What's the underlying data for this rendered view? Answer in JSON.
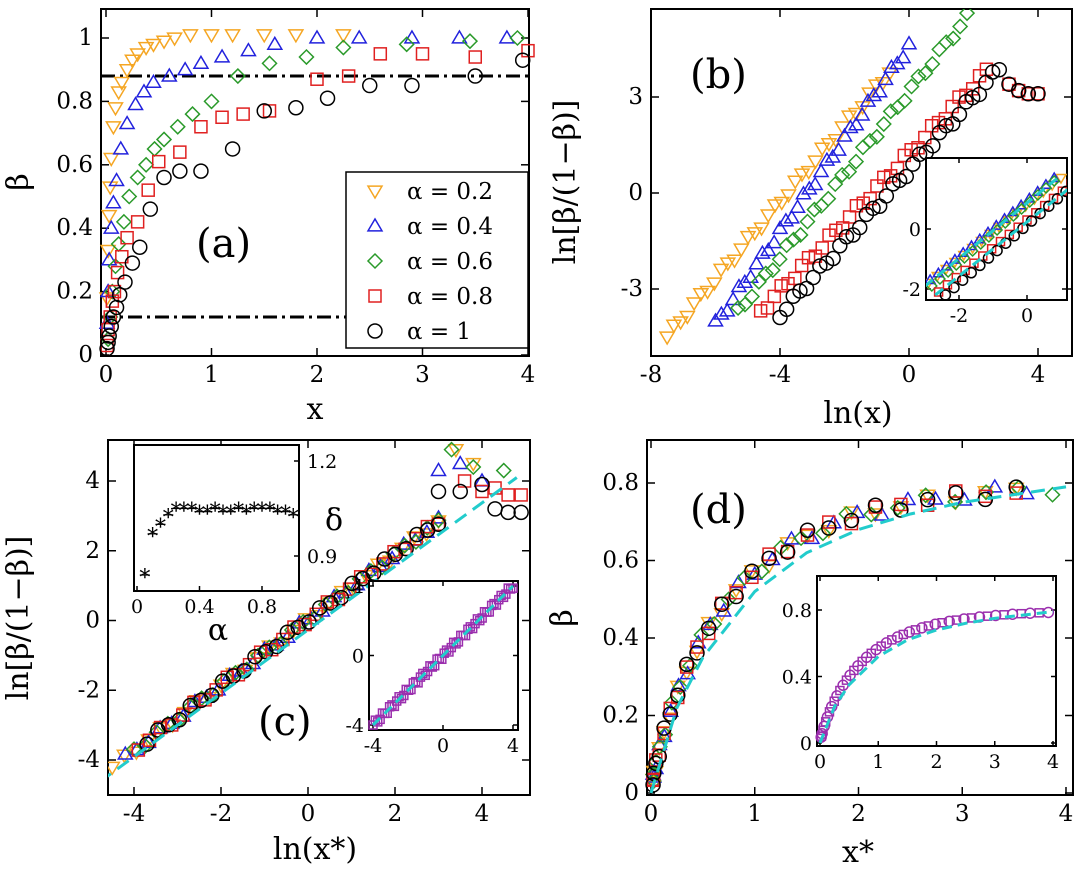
{
  "chart_data": [
    {
      "panel": "a",
      "type": "scatter",
      "panel_label": "(a)",
      "xlabel": "x",
      "ylabel": "β",
      "xlim": [
        0,
        4
      ],
      "ylim": [
        0,
        1.1
      ],
      "xticks": [
        "0",
        "1",
        "2",
        "3",
        "4"
      ],
      "yticks": [
        "0",
        "0.2",
        "0.4",
        "0.6",
        "0.8",
        "1"
      ],
      "reference_lines": [
        {
          "style": "dash-dot",
          "y": 0.88
        },
        {
          "style": "dash-dot",
          "y": 0.12,
          "x_end": 2.35
        }
      ],
      "legend": {
        "position": "bottom-right",
        "entries": [
          "α = 0.2",
          "α = 0.4",
          "α = 0.6",
          "α = 0.8",
          "α = 1"
        ]
      },
      "series": [
        {
          "name": "α = 0.2",
          "color": "#f5a623",
          "marker": "triangle-down",
          "x": [
            0.01,
            0.02,
            0.03,
            0.04,
            0.05,
            0.07,
            0.09,
            0.12,
            0.15,
            0.2,
            0.25,
            0.3,
            0.38,
            0.45,
            0.55,
            0.65,
            0.8,
            1.0,
            1.2,
            1.5,
            1.8,
            2.25
          ],
          "y": [
            0.18,
            0.33,
            0.44,
            0.53,
            0.62,
            0.72,
            0.78,
            0.83,
            0.86,
            0.9,
            0.93,
            0.95,
            0.97,
            0.98,
            0.99,
            1.0,
            1.01,
            1.01,
            1.01,
            1.01,
            1.01,
            1.01
          ]
        },
        {
          "name": "α = 0.4",
          "color": "#2222dd",
          "marker": "triangle-up",
          "x": [
            0.01,
            0.02,
            0.03,
            0.05,
            0.07,
            0.1,
            0.14,
            0.2,
            0.28,
            0.36,
            0.45,
            0.6,
            0.75,
            0.9,
            1.1,
            1.35,
            1.6,
            2.0,
            2.4,
            2.9,
            3.35,
            3.8
          ],
          "y": [
            0.1,
            0.2,
            0.3,
            0.4,
            0.48,
            0.55,
            0.65,
            0.73,
            0.79,
            0.83,
            0.86,
            0.88,
            0.9,
            0.92,
            0.94,
            0.96,
            0.98,
            1.0,
            1.0,
            1.0,
            1.0,
            1.0
          ]
        },
        {
          "name": "α = 0.6",
          "color": "#2a9a2a",
          "marker": "diamond",
          "x": [
            0.02,
            0.04,
            0.06,
            0.09,
            0.12,
            0.17,
            0.22,
            0.3,
            0.38,
            0.46,
            0.55,
            0.68,
            0.82,
            1.0,
            1.25,
            1.55,
            1.9,
            2.25,
            2.85,
            3.45,
            3.9
          ],
          "y": [
            0.05,
            0.12,
            0.2,
            0.28,
            0.35,
            0.42,
            0.5,
            0.56,
            0.6,
            0.65,
            0.68,
            0.72,
            0.76,
            0.8,
            0.88,
            0.92,
            0.94,
            0.97,
            0.98,
            0.99,
            1.0
          ]
        },
        {
          "name": "α = 0.8",
          "color": "#e02020",
          "marker": "square",
          "x": [
            0.01,
            0.02,
            0.04,
            0.06,
            0.08,
            0.11,
            0.15,
            0.2,
            0.3,
            0.4,
            0.5,
            0.7,
            0.9,
            1.1,
            1.3,
            1.55,
            2.0,
            2.3,
            2.6,
            3.0,
            3.5,
            4.0
          ],
          "y": [
            0.03,
            0.08,
            0.12,
            0.17,
            0.2,
            0.26,
            0.31,
            0.37,
            0.42,
            0.52,
            0.61,
            0.64,
            0.72,
            0.75,
            0.76,
            0.77,
            0.87,
            0.88,
            0.95,
            0.95,
            0.94,
            0.96
          ]
        },
        {
          "name": "α = 1",
          "color": "#000000",
          "marker": "circle",
          "x": [
            0.01,
            0.02,
            0.03,
            0.05,
            0.07,
            0.1,
            0.13,
            0.18,
            0.25,
            0.32,
            0.42,
            0.55,
            0.7,
            0.9,
            1.2,
            1.5,
            1.8,
            2.1,
            2.5,
            2.9,
            3.5,
            3.95
          ],
          "y": [
            0.02,
            0.04,
            0.06,
            0.09,
            0.12,
            0.15,
            0.19,
            0.23,
            0.29,
            0.34,
            0.46,
            0.56,
            0.58,
            0.58,
            0.65,
            0.77,
            0.78,
            0.81,
            0.85,
            0.85,
            0.88,
            0.93
          ]
        }
      ]
    },
    {
      "panel": "b",
      "type": "scatter",
      "panel_label": "(b)",
      "xlabel": "ln(x)",
      "ylabel": "ln[β/(1−β)]",
      "xlim": [
        -8,
        5
      ],
      "ylim": [
        -5,
        6
      ],
      "xticks": [
        "-8",
        "-4",
        "0",
        "4"
      ],
      "yticks": [
        "-3",
        "0",
        "3"
      ],
      "series_colors": [
        "#f5a623",
        "#2222dd",
        "#2a9a2a",
        "#e02020",
        "#000000"
      ],
      "series_markers": [
        "triangle-down",
        "triangle-up",
        "diamond",
        "square",
        "circle"
      ],
      "series_ranges": [
        {
          "x_start": -7.5,
          "y_start": -4.5,
          "x_end": -0.6,
          "y_end": 3.8,
          "n": 34
        },
        {
          "x_start": -6.0,
          "y_start": -4.1,
          "x_end": 0.0,
          "y_end": 4.6,
          "n": 34
        },
        {
          "x_start": -5.3,
          "y_start": -3.7,
          "x_end": 1.8,
          "y_end": 5.5,
          "n": 34
        },
        {
          "x_start": -4.6,
          "y_start": -3.7,
          "x_end": 2.4,
          "y_end": 3.8,
          "n": 34
        },
        {
          "x_start": -4.0,
          "y_start": -3.8,
          "x_end": 2.8,
          "y_end": 3.9,
          "n": 34
        }
      ],
      "inset": {
        "xlim": [
          -3,
          1.5
        ],
        "ylim": [
          -2.2,
          1.7
        ],
        "xticks": [
          "-2",
          "0"
        ],
        "yticks": [
          "-2",
          "0"
        ],
        "fit_lines": [
          {
            "color": "#22cccc",
            "x": [
              -3,
              0.9
            ],
            "y": [
              -1.9,
              1.7
            ]
          },
          {
            "color": "#22cccc",
            "x": [
              -2.7,
              1.4
            ],
            "y": [
              -2.2,
              1.5
            ]
          }
        ]
      }
    },
    {
      "panel": "c",
      "type": "scatter",
      "panel_label": "(c)",
      "xlabel": "ln(x*)",
      "ylabel": "ln[β/(1−β)]",
      "xlim": [
        -5.2,
        5
      ],
      "ylim": [
        -5,
        5
      ],
      "xticks": [
        "-4",
        "-2",
        "0",
        "2",
        "4"
      ],
      "yticks": [
        "-4",
        "-2",
        "0",
        "2",
        "4"
      ],
      "fit_line": {
        "color": "#22cccc",
        "style": "dashed",
        "x": [
          -5.2,
          4.8
        ],
        "y": [
          -5.0,
          4.1
        ]
      },
      "series_colors": [
        "#f5a623",
        "#2222dd",
        "#2a9a2a",
        "#e02020",
        "#000000"
      ],
      "series_markers": [
        "triangle-down",
        "triangle-up",
        "diamond",
        "square",
        "circle"
      ],
      "tails": [
        {
          "x": [
            3.4,
            3.8
          ],
          "y": [
            4.9,
            4.5
          ]
        },
        {
          "x": [
            3.0,
            3.5,
            4.0
          ],
          "y": [
            4.3,
            4.5,
            4.0
          ]
        },
        {
          "x": [
            3.3,
            3.8,
            4.5
          ],
          "y": [
            4.9,
            4.4,
            4.3
          ]
        },
        {
          "x": [
            3.6,
            4.0,
            4.3,
            4.6,
            4.9
          ],
          "y": [
            4.0,
            3.7,
            3.8,
            3.6,
            3.6
          ]
        },
        {
          "x": [
            3.0,
            3.5,
            4.0,
            4.3,
            4.6,
            4.9
          ],
          "y": [
            3.7,
            3.7,
            3.9,
            3.2,
            3.1,
            3.1
          ]
        }
      ],
      "inset_alpha_delta": {
        "xlabel": "α",
        "ylabel": "δ",
        "xlim": [
          0,
          1.05
        ],
        "ylim": [
          0.8,
          1.25
        ],
        "xticks": [
          "0",
          "0.4",
          "0.8"
        ],
        "yticks": [
          "0.9",
          "1.2"
        ],
        "alpha": [
          0.05,
          0.1,
          0.15,
          0.2,
          0.25,
          0.3,
          0.35,
          0.4,
          0.45,
          0.5,
          0.55,
          0.6,
          0.65,
          0.7,
          0.75,
          0.8,
          0.85,
          0.9,
          0.95,
          1.0
        ],
        "delta": [
          0.84,
          0.97,
          1.0,
          1.03,
          1.05,
          1.05,
          1.05,
          1.04,
          1.04,
          1.05,
          1.04,
          1.04,
          1.05,
          1.04,
          1.05,
          1.05,
          1.05,
          1.04,
          1.04,
          1.03
        ]
      },
      "inset_collapse": {
        "xlim": [
          -4,
          4
        ],
        "ylim": [
          -4.2,
          4.2
        ],
        "xticks": [
          "-4",
          "0",
          "4"
        ],
        "yticks": [
          "-4",
          "0",
          "4"
        ],
        "marker_color": "#9b2fae",
        "fit_color": "#22cccc"
      }
    },
    {
      "panel": "d",
      "type": "scatter",
      "panel_label": "(d)",
      "xlabel": "x*",
      "ylabel": "β",
      "xlim": [
        0,
        4
      ],
      "ylim": [
        0,
        0.9
      ],
      "xticks": [
        "0",
        "1",
        "2",
        "3",
        "4"
      ],
      "yticks": [
        "0",
        "0.2",
        "0.4",
        "0.6",
        "0.8"
      ],
      "fit_line": {
        "color": "#22cccc",
        "style": "dashed",
        "x": [
          0,
          0.25,
          0.5,
          1.0,
          1.5,
          2.0,
          2.5,
          3.0,
          3.5,
          4.0
        ],
        "y": [
          0,
          0.22,
          0.35,
          0.52,
          0.62,
          0.68,
          0.72,
          0.75,
          0.77,
          0.79
        ]
      },
      "series_colors": [
        "#f5a623",
        "#2222dd",
        "#2a9a2a",
        "#e02020",
        "#000000"
      ],
      "series_markers": [
        "triangle-down",
        "triangle-up",
        "diamond",
        "square",
        "circle"
      ],
      "inset": {
        "xlim": [
          0,
          4
        ],
        "ylim": [
          0,
          0.9
        ],
        "xticks": [
          "0",
          "1",
          "2",
          "3",
          "4"
        ],
        "yticks": [
          "0",
          "0.4",
          "0.8"
        ],
        "marker_color": "#9b2fae"
      }
    }
  ]
}
